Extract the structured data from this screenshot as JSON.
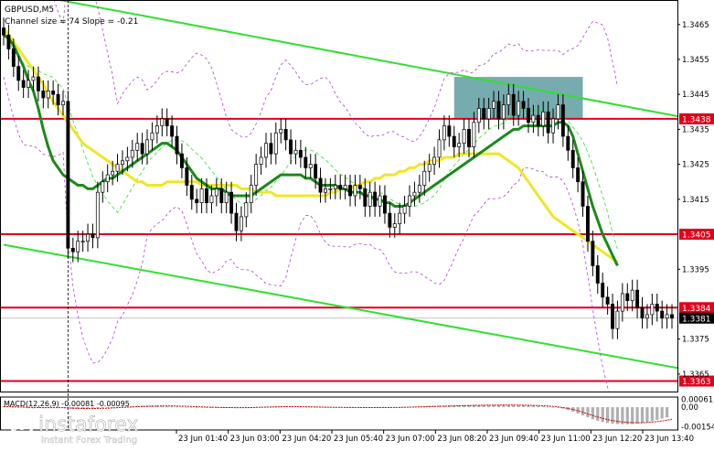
{
  "header": {
    "symbol": "GBPUSD,M5",
    "info": "Channel size = 74 Slope = -0.21"
  },
  "colors": {
    "candle": "#000000",
    "ma_fast": "#1a8a1a",
    "ma_slow": "#f0e628",
    "level": "#e0001b",
    "channel": "#2fe02f",
    "bollinger": "#b040c8",
    "signal_line": "#cc0000",
    "zone": "#5f9ea0",
    "histogram": "#b0b0b0"
  },
  "chart_data": {
    "type": "line",
    "title": "",
    "ylim": [
      1.336,
      1.3472
    ],
    "y_ticks": [
      "1.3465",
      "1.3455",
      "1.3445",
      "1.3435",
      "1.3425",
      "1.3415",
      "1.3395",
      "1.3375",
      "1.3365"
    ],
    "x_ticks": [
      "23 Jun 01:40",
      "23 Jun 03:00",
      "23 Jun 04:20",
      "23 Jun 05:40",
      "23 Jun 07:00",
      "23 Jun 08:20",
      "23 Jun 09:40",
      "23 Jun 11:00",
      "23 Jun 12:20",
      "23 Jun 13:40"
    ],
    "levels": [
      {
        "label": "1.3438",
        "value": 1.3438
      },
      {
        "label": "1.3405",
        "value": 1.3405
      },
      {
        "label": "1.3384",
        "value": 1.3384
      },
      {
        "label": "1.3363",
        "value": 1.3363
      }
    ],
    "last_price": {
      "label": "1.3381",
      "value": 1.3381
    },
    "zone": {
      "start": 91,
      "end": 117,
      "low": 1.3438,
      "high": 1.345
    },
    "channel": [
      {
        "x0": 0,
        "y0": 1.3475,
        "x1": 139,
        "y1": 1.3438
      },
      {
        "x0": 0,
        "y0": 1.3402,
        "x1": 139,
        "y1": 1.3366
      }
    ],
    "close": [
      1.3462,
      1.3458,
      1.3453,
      1.3449,
      1.3447,
      1.3449,
      1.345,
      1.3446,
      1.3444,
      1.3446,
      1.3445,
      1.3442,
      1.3443,
      1.3401,
      1.34,
      1.3403,
      1.3403,
      1.3405,
      1.3404,
      1.3417,
      1.342,
      1.3422,
      1.3423,
      1.3425,
      1.3426,
      1.3427,
      1.3429,
      1.3431,
      1.3428,
      1.3432,
      1.3434,
      1.3436,
      1.3438,
      1.3436,
      1.3433,
      1.3428,
      1.3424,
      1.3419,
      1.3415,
      1.3414,
      1.3418,
      1.3414,
      1.3416,
      1.3418,
      1.3414,
      1.3417,
      1.3411,
      1.3406,
      1.341,
      1.3414,
      1.3419,
      1.3425,
      1.3427,
      1.3431,
      1.3428,
      1.3434,
      1.3435,
      1.3432,
      1.3428,
      1.3429,
      1.3427,
      1.3424,
      1.3425,
      1.3421,
      1.3417,
      1.3418,
      1.3418,
      1.3419,
      1.3418,
      1.3419,
      1.3416,
      1.3419,
      1.3418,
      1.3413,
      1.3417,
      1.3413,
      1.3416,
      1.3411,
      1.3407,
      1.3408,
      1.3411,
      1.3413,
      1.3416,
      1.3417,
      1.3419,
      1.3423,
      1.3425,
      1.3427,
      1.3432,
      1.3436,
      1.3433,
      1.343,
      1.3431,
      1.3435,
      1.343,
      1.3437,
      1.3441,
      1.3438,
      1.3441,
      1.3443,
      1.3438,
      1.3442,
      1.3445,
      1.3439,
      1.3443,
      1.3441,
      1.3437,
      1.3439,
      1.3436,
      1.344,
      1.3434,
      1.3438,
      1.3442,
      1.3433,
      1.3429,
      1.3424,
      1.342,
      1.3413,
      1.3403,
      1.3396,
      1.3391,
      1.3387,
      1.3385,
      1.3378,
      1.3383,
      1.3388,
      1.3386,
      1.3389,
      1.3384,
      1.3381,
      1.3382,
      1.3385,
      1.3383,
      1.3381,
      1.3382,
      1.3381
    ],
    "ma_fast": [
      1.3462,
      1.3461,
      1.3459,
      1.3456,
      1.3453,
      1.3449,
      1.3446,
      1.3441,
      1.3435,
      1.343,
      1.3426,
      1.3424,
      1.3422,
      1.3421,
      1.342,
      1.3419,
      1.3419,
      1.3418,
      1.3418,
      1.3419,
      1.342,
      1.3421,
      1.3421,
      1.3422,
      1.3423,
      1.3424,
      1.3425,
      1.3426,
      1.3427,
      1.3428,
      1.3429,
      1.343,
      1.3431,
      1.3431,
      1.343,
      1.3429,
      1.3427,
      1.3425,
      1.3423,
      1.3421,
      1.342,
      1.3419,
      1.3418,
      1.3418,
      1.3418,
      1.3417,
      1.3416,
      1.3416,
      1.3416,
      1.3416,
      1.3416,
      1.3417,
      1.3418,
      1.3419,
      1.342,
      1.3421,
      1.3422,
      1.3422,
      1.3422,
      1.3422,
      1.3422,
      1.3421,
      1.3421,
      1.342,
      1.3419,
      1.3419,
      1.3419,
      1.3419,
      1.3418,
      1.3418,
      1.3417,
      1.3417,
      1.3417,
      1.3416,
      1.3416,
      1.3415,
      1.3415,
      1.3414,
      1.3414,
      1.3413,
      1.3413,
      1.3413,
      1.3414,
      1.3415,
      1.3416,
      1.3417,
      1.3418,
      1.3419,
      1.342,
      1.3421,
      1.3422,
      1.3423,
      1.3424,
      1.3425,
      1.3426,
      1.3427,
      1.3428,
      1.3429,
      1.343,
      1.3431,
      1.3432,
      1.3433,
      1.3434,
      1.3435,
      1.3435,
      1.3436,
      1.3436,
      1.3436,
      1.3436,
      1.3436,
      1.3436,
      1.3436,
      1.3437,
      1.3437,
      1.3436,
      1.3433,
      1.3428,
      1.3423,
      1.3418,
      1.3413,
      1.3409,
      1.3405,
      1.3402,
      1.3399,
      1.3396
    ],
    "ma_slow": [
      1.3464,
      1.3462,
      1.346,
      1.3458,
      1.3456,
      1.3454,
      1.3452,
      1.345,
      1.3448,
      1.3445,
      1.3443,
      1.3441,
      1.3439,
      1.3437,
      1.3435,
      1.3433,
      1.3431,
      1.343,
      1.3429,
      1.3428,
      1.3427,
      1.3426,
      1.3425,
      1.3424,
      1.3423,
      1.3422,
      1.3421,
      1.342,
      1.342,
      1.3419,
      1.3419,
      1.3419,
      1.3419,
      1.342,
      1.342,
      1.342,
      1.342,
      1.342,
      1.342,
      1.342,
      1.3419,
      1.3419,
      1.3419,
      1.3419,
      1.3419,
      1.3419,
      1.3419,
      1.3419,
      1.3418,
      1.3418,
      1.3418,
      1.3417,
      1.3417,
      1.3417,
      1.3417,
      1.3416,
      1.3416,
      1.3416,
      1.3416,
      1.3416,
      1.3416,
      1.3416,
      1.3416,
      1.3416,
      1.3416,
      1.3416,
      1.3417,
      1.3417,
      1.3418,
      1.3418,
      1.3418,
      1.3419,
      1.3419,
      1.342,
      1.342,
      1.3421,
      1.3421,
      1.3422,
      1.3422,
      1.3422,
      1.3423,
      1.3423,
      1.3424,
      1.3424,
      1.3425,
      1.3425,
      1.3426,
      1.3426,
      1.3426,
      1.3427,
      1.3427,
      1.3427,
      1.3428,
      1.3428,
      1.3428,
      1.3428,
      1.3428,
      1.3428,
      1.3428,
      1.3428,
      1.3428,
      1.3427,
      1.3426,
      1.3425,
      1.3424,
      1.3422,
      1.342,
      1.3418,
      1.3416,
      1.3414,
      1.3412,
      1.341,
      1.3409,
      1.3408,
      1.3407,
      1.3406,
      1.3405,
      1.3404,
      1.3403,
      1.3402,
      1.3401,
      1.34,
      1.3399,
      1.3398,
      1.3397
    ],
    "macd": {
      "label": "MACD(12,26,9) -0.00081 -0.00095",
      "ylim": [
        -0.0018,
        0.0008
      ],
      "ticks": [
        "0.00061",
        "0.00",
        "-0.00154"
      ],
      "histogram": [
        5e-05,
        3e-05,
        1e-05,
        -2e-05,
        -5e-05,
        -8e-05,
        -9e-05,
        -7e-05,
        -5e-05,
        -4e-05,
        -3e-05,
        -3e-05,
        -6e-05,
        -0.00012,
        -0.00015,
        -0.00016,
        -0.00015,
        -0.00013,
        -0.00011,
        -8e-05,
        -5e-05,
        -2e-05,
        1e-05,
        3e-05,
        5e-05,
        6e-05,
        8e-05,
        0.0001,
        0.00011,
        0.00012,
        0.00012,
        0.00012,
        0.00011,
        9e-05,
        7e-05,
        5e-05,
        3e-05,
        1e-05,
        -1e-05,
        -3e-05,
        -4e-05,
        -5e-05,
        -6e-05,
        -6e-05,
        -6e-05,
        -6e-05,
        -6e-05,
        -5e-05,
        -4e-05,
        -2e-05,
        0.0,
        2e-05,
        4e-05,
        5e-05,
        6e-05,
        7e-05,
        7e-05,
        6e-05,
        5e-05,
        4e-05,
        3e-05,
        2e-05,
        1e-05,
        0.0,
        -1e-05,
        -2e-05,
        -2e-05,
        -3e-05,
        -3e-05,
        -3e-05,
        -3e-05,
        -3e-05,
        -4e-05,
        -4e-05,
        -4e-05,
        -4e-05,
        -4e-05,
        -3e-05,
        -2e-05,
        -1e-05,
        0.0,
        2e-05,
        3e-05,
        5e-05,
        6e-05,
        8e-05,
        9e-05,
        0.0001,
        0.00011,
        0.00012,
        0.00013,
        0.00014,
        0.00015,
        0.00016,
        0.00016,
        0.00017,
        0.00017,
        0.00018,
        0.00018,
        0.00018,
        0.00018,
        0.00018,
        0.00017,
        0.00017,
        0.00016,
        0.00015,
        0.00014,
        0.00012,
        0.0001,
        7e-05,
        4e-05,
        0.0,
        -5e-05,
        -0.00012,
        -0.00022,
        -0.00035,
        -0.0005,
        -0.00065,
        -0.0008,
        -0.00095,
        -0.00108,
        -0.00118,
        -0.00125,
        -0.0013,
        -0.00133,
        -0.00135,
        -0.00136,
        -0.00134,
        -0.0013,
        -0.00125,
        -0.00118,
        -0.0011,
        -0.001,
        -0.0009,
        -0.00081
      ],
      "signal": [
        4e-05,
        4e-05,
        3e-05,
        2e-05,
        1e-05,
        -1e-05,
        -2e-05,
        -3e-05,
        -4e-05,
        -4e-05,
        -4e-05,
        -4e-05,
        -4e-05,
        -6e-05,
        -8e-05,
        -9e-05,
        -0.0001,
        -0.00011,
        -0.00011,
        -0.0001,
        -9e-05,
        -8e-05,
        -6e-05,
        -4e-05,
        -2e-05,
        0.0,
        2e-05,
        4e-05,
        5e-05,
        7e-05,
        8e-05,
        9e-05,
        0.0001,
        0.0001,
        0.0001,
        9e-05,
        8e-05,
        7e-05,
        5e-05,
        4e-05,
        2e-05,
        1e-05,
        0.0,
        -1e-05,
        -2e-05,
        -3e-05,
        -3e-05,
        -4e-05,
        -4e-05,
        -4e-05,
        -3e-05,
        -2e-05,
        -1e-05,
        0.0,
        1e-05,
        2e-05,
        3e-05,
        4e-05,
        4e-05,
        4e-05,
        4e-05,
        3e-05,
        3e-05,
        2e-05,
        1e-05,
        0.0,
        0.0,
        -1e-05,
        -1e-05,
        -2e-05,
        -2e-05,
        -2e-05,
        -3e-05,
        -3e-05,
        -3e-05,
        -3e-05,
        -3e-05,
        -3e-05,
        -3e-05,
        -2e-05,
        -2e-05,
        -1e-05,
        0.0,
        1e-05,
        2e-05,
        3e-05,
        5e-05,
        6e-05,
        7e-05,
        8e-05,
        9e-05,
        0.0001,
        0.00011,
        0.00012,
        0.00013,
        0.00014,
        0.00014,
        0.00015,
        0.00016,
        0.00016,
        0.00016,
        0.00017,
        0.00017,
        0.00017,
        0.00016,
        0.00016,
        0.00015,
        0.00014,
        0.00013,
        0.00011,
        9e-05,
        6e-05,
        2e-05,
        -3e-05,
        -0.0001,
        -0.00018,
        -0.00028,
        -0.0004,
        -0.00053,
        -0.00066,
        -0.00078,
        -0.00089,
        -0.00098,
        -0.00106,
        -0.00112,
        -0.00117,
        -0.0012,
        -0.00122,
        -0.00123,
        -0.00123,
        -0.00121,
        -0.00118,
        -0.00114,
        -0.00109,
        -0.00103,
        -0.00095
      ]
    }
  },
  "watermark": {
    "brand": "instaforex",
    "tagline": "Instant Forex Trading"
  }
}
